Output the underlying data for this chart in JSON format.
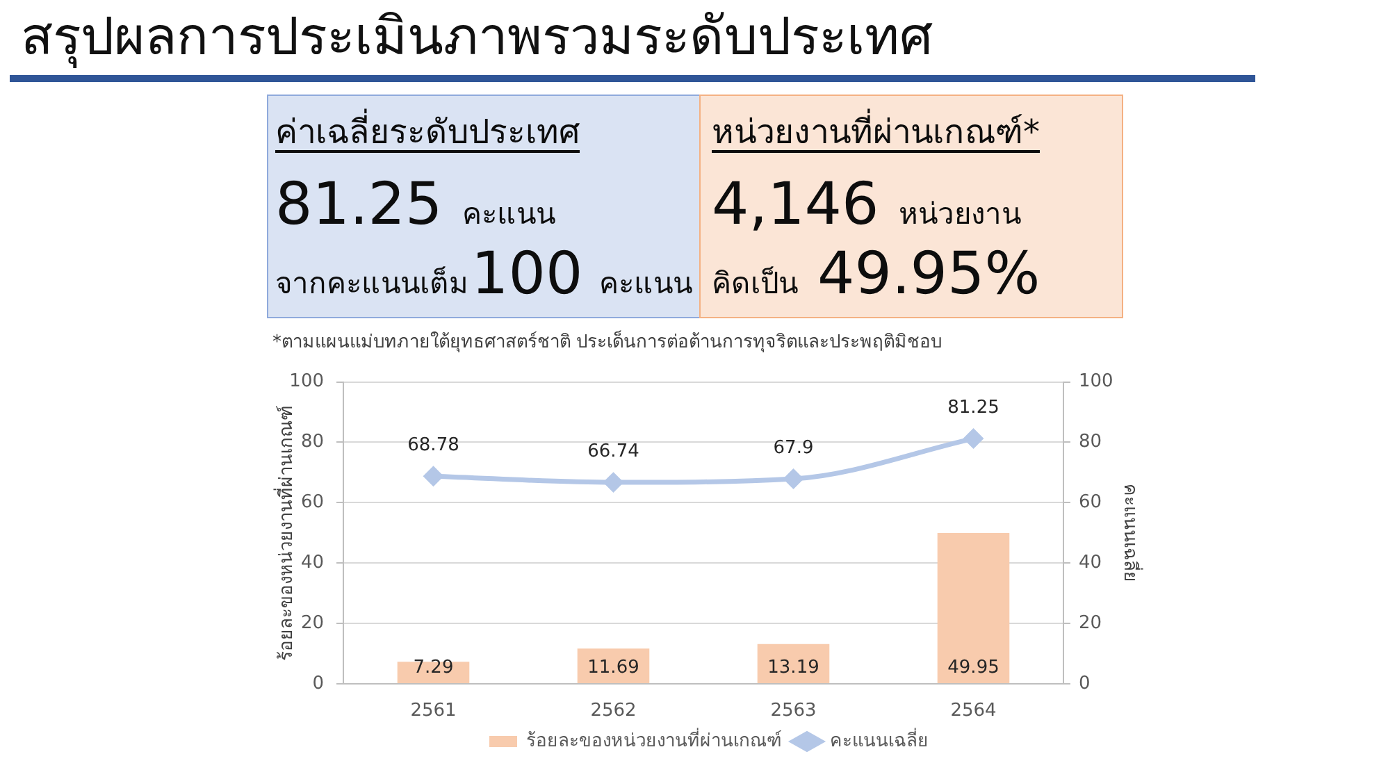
{
  "chart_data": [
    {
      "type": "other",
      "title": "สรุปผลการประเมินภาพรวมระดับประเทศ",
      "annotations": [
        "ค่าเฉลี่ยระดับประเทศ",
        "81.25",
        "คะแนน",
        "จากคะแนนเต็ม",
        "100",
        "คะแนน",
        "หน่วยงานที่ผ่านเกณฑ์*",
        "4,146",
        "หน่วยงาน",
        "คิดเป็น",
        "49.95%",
        "*ตามแผนแม่บทภายใต้ยุทธศาสตร์ชาติ ประเด็นการต่อต้านการทุจริตและประพฤติมิชอบ"
      ]
    },
    {
      "type": "bar",
      "categories": [
        "2561",
        "2562",
        "2563",
        "2564"
      ],
      "ylabel": "ร้อยละของหน่วยงานที่ผ่านเกณฑ์",
      "y2label": "คะแนนเฉลี่ย",
      "ylim": [
        0,
        100
      ],
      "yticks": [
        0,
        20,
        40,
        60,
        80,
        100
      ],
      "y2lim": [
        0,
        100
      ],
      "y2ticks": [
        0,
        20,
        40,
        60,
        80,
        100
      ],
      "grid": "y",
      "legend": "bottom",
      "marker": "diamond",
      "data_labels": true,
      "series": [
        {
          "name": "ร้อยละของหน่วยงานที่ผ่านเกณฑ์",
          "color": "#f8cbad",
          "values": [
            7.29,
            11.69,
            13.19,
            49.95
          ]
        },
        {
          "name": "คะแนนเฉลี่ย",
          "type": "line",
          "axis": "y2",
          "color": "#b4c7e7",
          "values": [
            68.78,
            66.74,
            67.9,
            81.25
          ]
        }
      ]
    }
  ]
}
